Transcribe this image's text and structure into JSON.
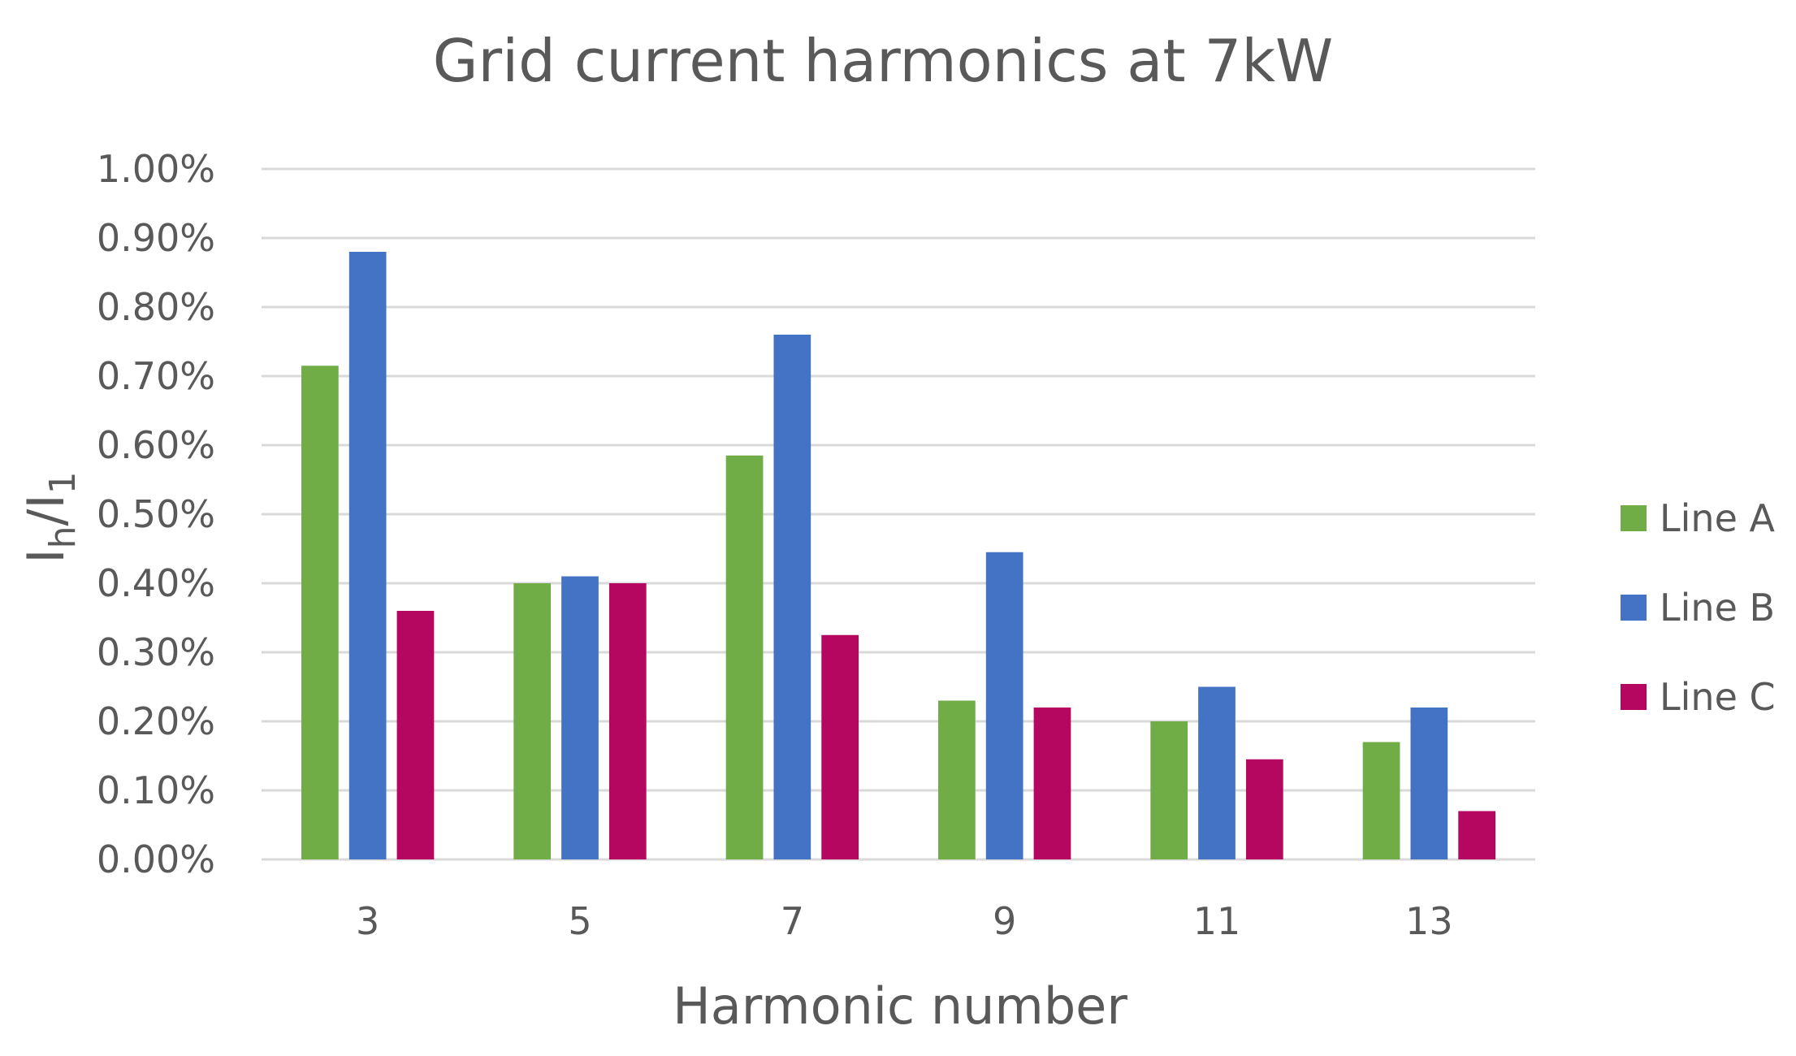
{
  "chart_data": {
    "type": "bar",
    "title": "Grid current harmonics at 7kW",
    "xlabel": "Harmonic number",
    "ylabel": {
      "base": "I",
      "num_sub": "h",
      "sep": "/",
      "base2": "I",
      "den_sub": "1"
    },
    "categories": [
      "3",
      "5",
      "7",
      "9",
      "11",
      "13"
    ],
    "ylim": [
      0,
      1.0
    ],
    "yticks": [
      0,
      0.1,
      0.2,
      0.3,
      0.4,
      0.5,
      0.6,
      0.7,
      0.8,
      0.9,
      1.0
    ],
    "ytick_labels": [
      "0.00%",
      "0.10%",
      "0.20%",
      "0.30%",
      "0.40%",
      "0.50%",
      "0.60%",
      "0.70%",
      "0.80%",
      "0.90%",
      "1.00%"
    ],
    "y_unit": "%",
    "grid": true,
    "legend_position": "right",
    "series": [
      {
        "name": "Line A",
        "color": "#70ad47",
        "values": [
          0.715,
          0.4,
          0.585,
          0.23,
          0.2,
          0.17
        ]
      },
      {
        "name": "Line B",
        "color": "#4472c4",
        "values": [
          0.88,
          0.41,
          0.76,
          0.445,
          0.25,
          0.22
        ]
      },
      {
        "name": "Line C",
        "color": "#b5075f",
        "values": [
          0.36,
          0.4,
          0.325,
          0.22,
          0.145,
          0.07
        ]
      }
    ]
  }
}
